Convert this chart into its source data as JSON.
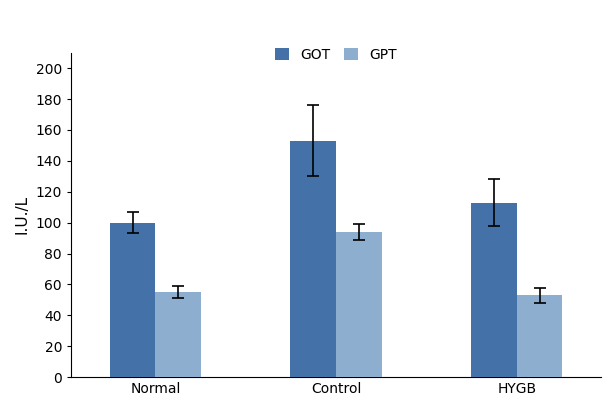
{
  "categories": [
    "Normal",
    "Control",
    "HYGB"
  ],
  "got_values": [
    100,
    153,
    113
  ],
  "gpt_values": [
    55,
    94,
    53
  ],
  "got_errors": [
    7,
    23,
    15
  ],
  "gpt_errors": [
    4,
    5,
    5
  ],
  "got_color": "#4472a8",
  "gpt_color": "#8eaed0",
  "ylabel": "I.U./L",
  "ylim": [
    0,
    210
  ],
  "yticks": [
    0,
    20,
    40,
    60,
    80,
    100,
    120,
    140,
    160,
    180,
    200
  ],
  "legend_labels": [
    "GOT",
    "GPT"
  ],
  "bar_width": 0.38,
  "background_color": "#ffffff",
  "axis_fontsize": 11,
  "tick_fontsize": 10,
  "legend_fontsize": 10
}
